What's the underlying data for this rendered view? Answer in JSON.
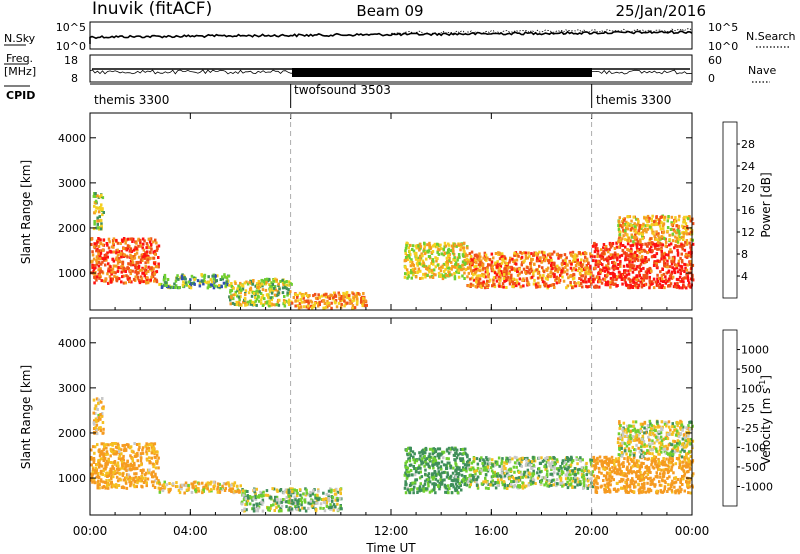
{
  "header": {
    "station": "Inuvik (fitACF)",
    "beam": "Beam 09",
    "date": "25/Jan/2016"
  },
  "strips": {
    "nsky_label": "N.Sky",
    "nsky_ticks": [
      "10^5",
      "10^0"
    ],
    "nsearch_label": "N.Search",
    "nsearch_ticks": [
      "10^5",
      "10^0"
    ],
    "freq_label_1": "Freq.",
    "freq_label_2": "[MHz]",
    "freq_ticks": [
      "18",
      "8"
    ],
    "nave_label": "Nave",
    "nave_ticks": [
      "60",
      "0"
    ],
    "cpid_label": "CPID",
    "cpid_segments": [
      {
        "label": "themis 3300",
        "start_hour": 0,
        "end_hour": 8
      },
      {
        "label": "twofsound 3503",
        "start_hour": 8,
        "end_hour": 20
      },
      {
        "label": "themis 3300",
        "start_hour": 20,
        "end_hour": 24
      }
    ]
  },
  "axes": {
    "x_ticks": [
      "00:00",
      "04:00",
      "08:00",
      "12:00",
      "16:00",
      "20:00",
      "00:00"
    ],
    "x_tick_hours": [
      0,
      4,
      8,
      12,
      16,
      20,
      24
    ],
    "xlabel": "Time UT",
    "ylabel": "Slant Range [km]",
    "y_ticks": [
      "1000",
      "2000",
      "3000",
      "4000"
    ],
    "y_tick_values": [
      1000,
      2000,
      3000,
      4000
    ],
    "ylim": [
      180,
      4550
    ],
    "xlim_hours": [
      0,
      24
    ]
  },
  "power_colorbar": {
    "label": "Power [dB]",
    "ticks": [
      "4",
      "8",
      "12",
      "16",
      "20",
      "24",
      "28"
    ],
    "colors": [
      "#1f1fff",
      "#2e4fb0",
      "#3f8f5a",
      "#6fcf2f",
      "#f5d020",
      "#f59a20",
      "#f05018",
      "#ff1010"
    ]
  },
  "velocity_colorbar": {
    "label": "Velocity [m s",
    "label_exp": "-1",
    "label_end": "]",
    "ticks": [
      "1000",
      "500",
      "100",
      "25",
      "-25",
      "-100",
      "-500",
      "-1000"
    ],
    "colors": [
      "#2020cc",
      "#2e5aa8",
      "#3f8f5a",
      "#6fcf2f",
      "#c8c8c8",
      "#f5c020",
      "#f59a20",
      "#f05018",
      "#ff1010"
    ]
  },
  "chart_data": [
    {
      "type": "heatmap",
      "title": "Power",
      "xlabel": "Time UT",
      "ylabel": "Slant Range [km]",
      "x_unit": "hour UT",
      "ylim": [
        180,
        4550
      ],
      "regions": [
        {
          "t0": 0.0,
          "t1": 2.7,
          "r0": 800,
          "r1": 1800,
          "value_db": 26
        },
        {
          "t0": 0.1,
          "t1": 0.5,
          "r0": 2000,
          "r1": 2800,
          "value_db": 16
        },
        {
          "t0": 2.7,
          "t1": 5.5,
          "r0": 700,
          "r1": 1000,
          "value_db": 12
        },
        {
          "t0": 5.5,
          "t1": 8.0,
          "r0": 300,
          "r1": 900,
          "value_db": 16
        },
        {
          "t0": 8.0,
          "t1": 11.0,
          "r0": 250,
          "r1": 600,
          "value_db": 22
        },
        {
          "t0": 12.5,
          "t1": 15.0,
          "r0": 900,
          "r1": 1700,
          "value_db": 18
        },
        {
          "t0": 15.0,
          "t1": 20.0,
          "r0": 700,
          "r1": 1500,
          "value_db": 24
        },
        {
          "t0": 20.0,
          "t1": 24.0,
          "r0": 700,
          "r1": 1700,
          "value_db": 28
        },
        {
          "t0": 21.0,
          "t1": 24.0,
          "r0": 1700,
          "r1": 2300,
          "value_db": 20
        }
      ]
    },
    {
      "type": "heatmap",
      "title": "Velocity",
      "xlabel": "Time UT",
      "ylabel": "Slant Range [km]",
      "x_unit": "hour UT",
      "ylim": [
        180,
        4550
      ],
      "regions": [
        {
          "t0": 0.0,
          "t1": 2.7,
          "r0": 800,
          "r1": 1800,
          "value_ms": -150
        },
        {
          "t0": 0.1,
          "t1": 0.5,
          "r0": 2000,
          "r1": 2800,
          "value_ms": -100
        },
        {
          "t0": 2.7,
          "t1": 6.0,
          "r0": 700,
          "r1": 950,
          "value_ms": -50
        },
        {
          "t0": 6.0,
          "t1": 10.0,
          "r0": 300,
          "r1": 800,
          "value_ms": 60
        },
        {
          "t0": 12.5,
          "t1": 15.0,
          "r0": 700,
          "r1": 1700,
          "value_ms": 150
        },
        {
          "t0": 15.0,
          "t1": 20.0,
          "r0": 800,
          "r1": 1500,
          "value_ms": 60
        },
        {
          "t0": 20.0,
          "t1": 24.0,
          "r0": 700,
          "r1": 1500,
          "value_ms": -200
        },
        {
          "t0": 21.0,
          "t1": 24.0,
          "r0": 1500,
          "r1": 2300,
          "value_ms": 0
        }
      ]
    }
  ]
}
